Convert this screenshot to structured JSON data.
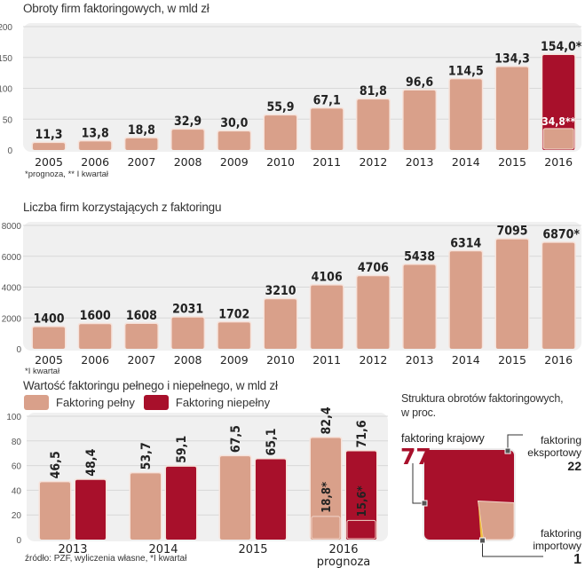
{
  "colors": {
    "light": "#d9a08a",
    "dark": "#a8102b",
    "panel": "#f0f0f0",
    "grid": "#d8d8d8"
  },
  "chart_data": [
    {
      "type": "bar",
      "title": "Obroty firm faktoringowych, w mld zł",
      "categories": [
        "2005",
        "2006",
        "2007",
        "2008",
        "2009",
        "2010",
        "2011",
        "2012",
        "2013",
        "2014",
        "2015",
        "2016"
      ],
      "values": [
        11.3,
        13.8,
        18.8,
        32.9,
        30.0,
        55.9,
        67.1,
        81.8,
        96.6,
        114.5,
        134.3,
        154.0
      ],
      "labels": [
        "11,3",
        "13,8",
        "18,8",
        "32,9",
        "30,0",
        "55,9",
        "67,1",
        "81,8",
        "96,6",
        "114,5",
        "134,3",
        "154,0*"
      ],
      "highlight": {
        "category": "2016",
        "forecast_total": 154.0,
        "q1_value": 34.8,
        "q1_label": "34,8**"
      },
      "yticks": [
        0,
        50,
        100,
        150,
        200
      ],
      "ylim": [
        0,
        200
      ],
      "grid": true,
      "footnote": "*prognoza, ** I kwartał"
    },
    {
      "type": "bar",
      "title": "Liczba firm korzystających z faktoringu",
      "categories": [
        "2005",
        "2006",
        "2007",
        "2008",
        "2009",
        "2010",
        "2011",
        "2012",
        "2013",
        "2014",
        "2015",
        "2016"
      ],
      "values": [
        1400,
        1600,
        1608,
        2031,
        1702,
        3210,
        4106,
        4706,
        5438,
        6314,
        7095,
        6870
      ],
      "labels": [
        "1400",
        "1600",
        "1608",
        "2031",
        "1702",
        "3210",
        "4106",
        "4706",
        "5438",
        "6314",
        "7095",
        "6870*"
      ],
      "yticks": [
        0,
        2000,
        4000,
        6000,
        8000
      ],
      "ylim": [
        0,
        8000
      ],
      "grid": true,
      "footnote": "*I kwartał"
    },
    {
      "type": "bar",
      "title": "Wartość faktoringu pełnego i niepełnego, w mld zł",
      "categories": [
        "2013",
        "2014",
        "2015",
        "2016"
      ],
      "category_sublabels": [
        "",
        "",
        "",
        "prognoza"
      ],
      "series": [
        {
          "name": "Faktoring pełny",
          "color": "#d9a08a",
          "values": [
            46.5,
            53.7,
            67.5,
            82.4
          ],
          "labels": [
            "46,5",
            "53,7",
            "67,5",
            "82,4"
          ]
        },
        {
          "name": "Faktoring niepełny",
          "color": "#a8102b",
          "values": [
            48.4,
            59.1,
            65.1,
            71.6
          ],
          "labels": [
            "48,4",
            "59,1",
            "65,1",
            "71,6"
          ]
        }
      ],
      "q1_2016": {
        "pelny": 18.8,
        "pelny_label": "18,8*",
        "niepelny": 15.6,
        "niepelny_label": "15,6*"
      },
      "yticks": [
        0,
        20,
        40,
        60,
        80,
        100
      ],
      "ylim": [
        0,
        100
      ],
      "grid": true,
      "legend": "top-left",
      "footnote": "źródło: PZF, wyliczenia własne, *I kwartał"
    },
    {
      "type": "pie",
      "title": "Struktura obrotów faktoringowych, w proc.",
      "slices": [
        {
          "name": "faktoring krajowy",
          "value": 77,
          "label": "77"
        },
        {
          "name": "faktoring eksportowy",
          "value": 22,
          "label": "22"
        },
        {
          "name": "faktoring importowy",
          "value": 1,
          "label": "1"
        }
      ]
    }
  ],
  "texts": {
    "chart1_title": "Obroty firm faktoringowych, w mld zł",
    "chart1_note": "*prognoza, ** I kwartał",
    "chart2_title": "Liczba firm korzystających z faktoringu",
    "chart2_note": "*I kwartał",
    "chart3_title": "Wartość faktoringu pełnego i niepełnego, w mld zł",
    "chart3_source": "źródło: PZF, wyliczenia własne, *I kwartał",
    "legend_full": "Faktoring pełny",
    "legend_partial": "Faktoring niepełny",
    "pie_title_1": "Struktura obrotów faktoringowych,",
    "pie_title_2": "w proc.",
    "pie_domestic_label": "faktoring krajowy",
    "pie_domestic_value": "77",
    "pie_export_label_1": "faktoring",
    "pie_export_label_2": "eksportowy",
    "pie_export_value": "22",
    "pie_import_label_1": "faktoring",
    "pie_import_label_2": "importowy",
    "pie_import_value": "1"
  }
}
